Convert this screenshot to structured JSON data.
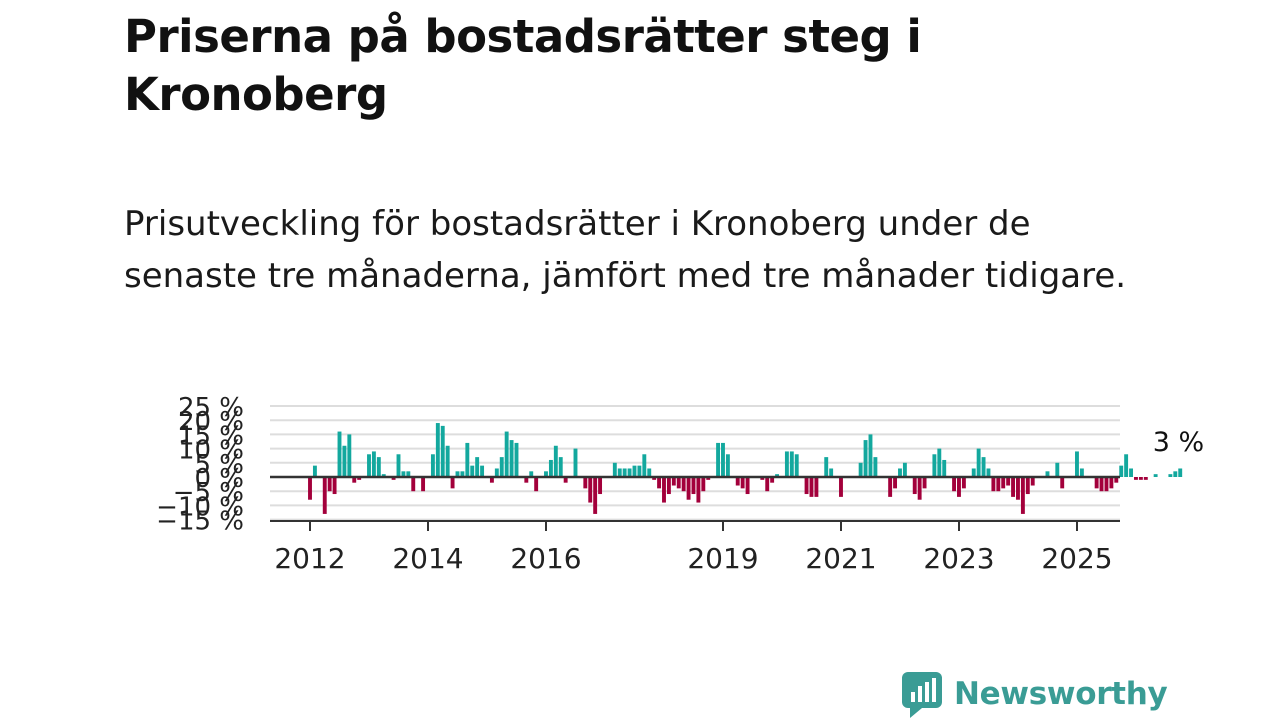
{
  "title": "Priserna på bostadsrätter steg i Kronoberg",
  "subtitle": "Prisutveckling för bostadsrätter i Kronoberg under de senaste tre månaderna, jämfört med tre månader tidigare.",
  "brand": {
    "name": "Newsworthy",
    "icon": "newsworthy-logo-icon",
    "color": "#3a9c95"
  },
  "colors": {
    "positive": "#13a89e",
    "negative": "#a3003b",
    "grid": "#dddddd",
    "zero": "#333333"
  },
  "chart_data": {
    "type": "bar",
    "title": "",
    "xlabel": "",
    "ylabel": "",
    "ylim": [
      -15,
      25
    ],
    "yticks": [
      25,
      20,
      15,
      10,
      5,
      0,
      -5,
      -10,
      -15
    ],
    "ytick_labels": [
      "25 %",
      "20 %",
      "15 %",
      "10 %",
      "5 %",
      "0 %",
      "−5 %",
      "−10 %",
      "−15 %"
    ],
    "x_start": 2012.0,
    "x_step": 0.08333,
    "xticks": [
      2012,
      2014,
      2016,
      2019,
      2021,
      2023,
      2025
    ],
    "last_label": "3 %",
    "grid": true,
    "values": [
      -8,
      4,
      0,
      -13,
      -5,
      -6,
      16,
      11,
      15,
      -2,
      -1,
      0,
      8,
      9,
      7,
      1,
      0,
      -1,
      8,
      2,
      2,
      -5,
      0,
      -5,
      0,
      8,
      19,
      18,
      11,
      -4,
      2,
      2,
      12,
      4,
      7,
      4,
      0,
      -2,
      3,
      7,
      16,
      13,
      12,
      0,
      -2,
      2,
      -5,
      0,
      2,
      6,
      11,
      7,
      -2,
      0,
      10,
      0,
      -4,
      -9,
      -13,
      -6,
      0,
      0,
      5,
      3,
      3,
      3,
      4,
      4,
      8,
      3,
      -1,
      -4,
      -9,
      -6,
      -3,
      -4,
      -5,
      -8,
      -6,
      -9,
      -5,
      -1,
      0,
      12,
      12,
      8,
      0,
      -3,
      -4,
      -6,
      0,
      0,
      -1,
      -5,
      -2,
      1,
      0,
      9,
      9,
      8,
      0,
      -6,
      -7,
      -7,
      0,
      7,
      3,
      0,
      -7,
      0,
      0,
      0,
      5,
      13,
      15,
      7,
      0,
      0,
      -7,
      -4,
      3,
      5,
      0,
      -6,
      -8,
      -4,
      0,
      8,
      10,
      6,
      0,
      -5,
      -7,
      -4,
      0,
      3,
      10,
      7,
      3,
      -5,
      -5,
      -4,
      -3,
      -7,
      -8,
      -13,
      -6,
      -3,
      0,
      0,
      2,
      0,
      5,
      -4,
      0,
      0,
      9,
      3,
      0,
      0,
      -4,
      -5,
      -5,
      -4,
      -2,
      4,
      8,
      3,
      -1,
      -1,
      -1,
      0,
      1,
      0,
      0,
      1,
      2,
      3
    ]
  }
}
